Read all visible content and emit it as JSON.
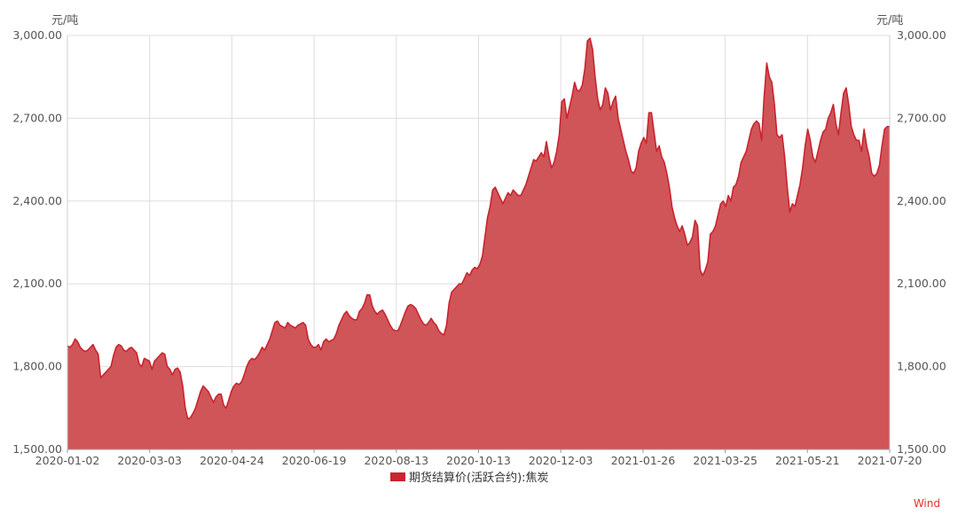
{
  "chart_data": {
    "type": "area",
    "y_unit_left": "元/吨",
    "y_unit_right": "元/吨",
    "ylim": [
      1500,
      3000
    ],
    "y_ticks": [
      1500,
      1800,
      2100,
      2400,
      2700,
      3000
    ],
    "y_tick_labels": [
      "1,500.00",
      "1,800.00",
      "2,100.00",
      "2,400.00",
      "2,700.00",
      "3,000.00"
    ],
    "x_tick_labels": [
      "2020-01-02",
      "2020-03-03",
      "2020-04-24",
      "2020-06-19",
      "2020-08-13",
      "2020-10-13",
      "2020-12-03",
      "2021-01-26",
      "2021-03-25",
      "2021-05-21",
      "2021-07-20"
    ],
    "grid": true,
    "legend_position": "bottom-center",
    "series": [
      {
        "name": "期货结算价(活跃合约):焦炭",
        "color": "#c9242f",
        "fill_color": "#cf5558",
        "values": [
          1875,
          1870,
          1880,
          1900,
          1890,
          1870,
          1860,
          1855,
          1860,
          1870,
          1880,
          1860,
          1845,
          1760,
          1770,
          1780,
          1790,
          1800,
          1840,
          1870,
          1880,
          1875,
          1860,
          1855,
          1865,
          1870,
          1860,
          1850,
          1810,
          1800,
          1830,
          1825,
          1820,
          1790,
          1820,
          1830,
          1840,
          1850,
          1845,
          1800,
          1790,
          1770,
          1790,
          1795,
          1780,
          1730,
          1650,
          1610,
          1615,
          1630,
          1650,
          1680,
          1710,
          1730,
          1720,
          1710,
          1690,
          1670,
          1690,
          1700,
          1700,
          1660,
          1650,
          1680,
          1710,
          1730,
          1740,
          1735,
          1745,
          1770,
          1800,
          1820,
          1830,
          1825,
          1835,
          1850,
          1870,
          1860,
          1880,
          1900,
          1930,
          1960,
          1965,
          1950,
          1945,
          1940,
          1960,
          1950,
          1945,
          1940,
          1950,
          1955,
          1960,
          1950,
          1900,
          1880,
          1870,
          1870,
          1880,
          1860,
          1890,
          1900,
          1890,
          1895,
          1900,
          1920,
          1950,
          1970,
          1990,
          2000,
          1985,
          1975,
          1970,
          1970,
          2000,
          2010,
          2030,
          2060,
          2060,
          2020,
          2000,
          1990,
          2000,
          2005,
          1990,
          1970,
          1950,
          1935,
          1930,
          1930,
          1950,
          1975,
          2000,
          2020,
          2025,
          2020,
          2010,
          1990,
          1970,
          1955,
          1950,
          1960,
          1975,
          1960,
          1950,
          1930,
          1920,
          1915,
          1950,
          2030,
          2070,
          2080,
          2090,
          2100,
          2100,
          2120,
          2140,
          2130,
          2150,
          2160,
          2155,
          2170,
          2200,
          2270,
          2340,
          2380,
          2440,
          2450,
          2430,
          2410,
          2390,
          2410,
          2430,
          2420,
          2440,
          2430,
          2420,
          2420,
          2440,
          2460,
          2490,
          2520,
          2550,
          2545,
          2560,
          2575,
          2560,
          2615,
          2560,
          2520,
          2540,
          2580,
          2640,
          2760,
          2770,
          2700,
          2740,
          2780,
          2830,
          2800,
          2800,
          2820,
          2880,
          2980,
          2990,
          2950,
          2850,
          2770,
          2730,
          2750,
          2810,
          2790,
          2730,
          2760,
          2780,
          2700,
          2660,
          2620,
          2580,
          2550,
          2510,
          2500,
          2520,
          2580,
          2610,
          2630,
          2610,
          2720,
          2720,
          2650,
          2580,
          2600,
          2560,
          2540,
          2500,
          2450,
          2380,
          2340,
          2310,
          2290,
          2310,
          2280,
          2240,
          2250,
          2270,
          2330,
          2310,
          2150,
          2130,
          2150,
          2180,
          2280,
          2290,
          2310,
          2350,
          2390,
          2400,
          2380,
          2420,
          2400,
          2450,
          2460,
          2490,
          2540,
          2560,
          2580,
          2620,
          2660,
          2680,
          2690,
          2680,
          2620,
          2780,
          2900,
          2850,
          2830,
          2750,
          2640,
          2630,
          2640,
          2560,
          2450,
          2360,
          2390,
          2380,
          2420,
          2460,
          2520,
          2600,
          2660,
          2620,
          2560,
          2540,
          2580,
          2620,
          2650,
          2660,
          2700,
          2720,
          2750,
          2680,
          2640,
          2720,
          2790,
          2810,
          2750,
          2670,
          2640,
          2620,
          2620,
          2580,
          2660,
          2600,
          2560,
          2500,
          2490,
          2500,
          2530,
          2600,
          2660,
          2670,
          2670
        ]
      }
    ],
    "source_label": "Wind"
  }
}
